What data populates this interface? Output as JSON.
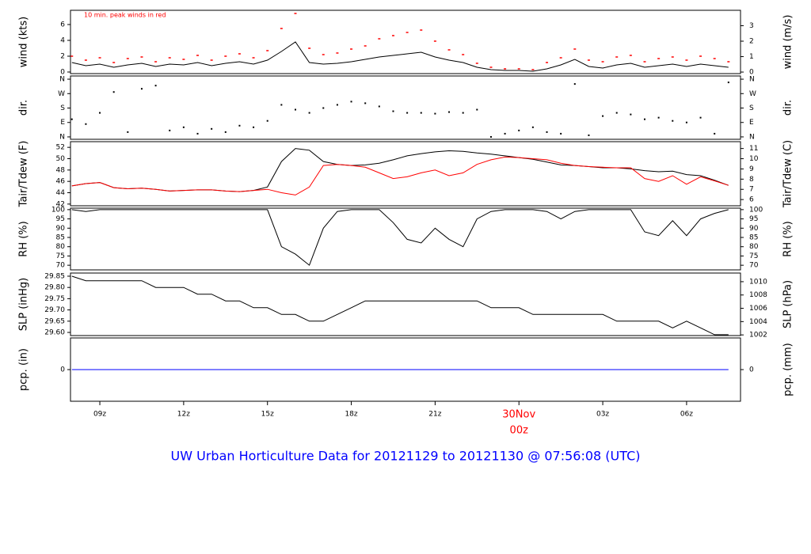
{
  "title": "UW Urban Horticulture Data for 20121129  to  20121130 @ 07:56:08  (UTC)",
  "chart_data": [
    {
      "type": "line",
      "ylabel": "wind (kts)",
      "y2label": "wind (m/s)",
      "annotation": "10 min. peak winds in red",
      "xlim": [
        7.95,
        31.93
      ],
      "ylim": [
        -0.2,
        7.8
      ],
      "yticks": [
        0,
        2,
        4,
        6
      ],
      "y2lim": [
        -0.1,
        4.0
      ],
      "y2ticks": [
        0,
        1,
        2,
        3
      ],
      "x": [
        8,
        8.5,
        9,
        9.5,
        10,
        10.5,
        11,
        11.5,
        12,
        12.5,
        13,
        13.5,
        14,
        14.5,
        15,
        15.5,
        16,
        16.5,
        17,
        17.5,
        18,
        18.5,
        19,
        19.5,
        20,
        20.5,
        21,
        21.5,
        22,
        22.5,
        23,
        23.5,
        24,
        24.5,
        25,
        25.5,
        26,
        26.5,
        27,
        27.5,
        28,
        28.5,
        29,
        29.5,
        30,
        30.5,
        31,
        31.5
      ],
      "series": [
        {
          "style": "line",
          "color": "#000000",
          "values": [
            1.2,
            0.8,
            1.0,
            0.6,
            0.9,
            1.1,
            0.7,
            1.0,
            0.9,
            1.2,
            0.8,
            1.1,
            1.3,
            1.0,
            1.5,
            2.6,
            3.8,
            1.2,
            1.0,
            1.1,
            1.3,
            1.6,
            1.9,
            2.1,
            2.3,
            2.5,
            1.9,
            1.5,
            1.2,
            0.6,
            0.3,
            0.2,
            0.2,
            0.1,
            0.4,
            0.9,
            1.6,
            0.7,
            0.5,
            0.9,
            1.1,
            0.6,
            0.8,
            1.0,
            0.7,
            1.0,
            0.8,
            0.6
          ]
        },
        {
          "style": "points",
          "color": "#ff0000",
          "values": [
            2.0,
            1.5,
            1.8,
            1.2,
            1.7,
            1.9,
            1.3,
            1.8,
            1.6,
            2.1,
            1.5,
            2.0,
            2.3,
            1.8,
            2.7,
            5.5,
            7.4,
            3.0,
            2.2,
            2.4,
            2.9,
            3.3,
            4.2,
            4.6,
            5.0,
            5.3,
            3.9,
            2.8,
            2.2,
            1.1,
            0.6,
            0.4,
            0.4,
            0.3,
            1.2,
            1.8,
            2.9,
            1.5,
            1.3,
            1.9,
            2.1,
            1.3,
            1.7,
            1.9,
            1.5,
            2.0,
            1.7,
            1.3
          ]
        }
      ]
    },
    {
      "type": "scatter",
      "ylabel": "dir.",
      "y2label": "dir.",
      "xlim": [
        7.95,
        31.93
      ],
      "ylim": [
        -15,
        380
      ],
      "yticks": [
        {
          "value": 0,
          "label": "N"
        },
        {
          "value": 90,
          "label": "E"
        },
        {
          "value": 180,
          "label": "S"
        },
        {
          "value": 270,
          "label": "W"
        },
        {
          "value": 360,
          "label": "N"
        }
      ],
      "y2lim": [
        -15,
        380
      ],
      "y2ticks": [
        {
          "value": 0,
          "label": "N"
        },
        {
          "value": 90,
          "label": "E"
        },
        {
          "value": 180,
          "label": "S"
        },
        {
          "value": 270,
          "label": "W"
        },
        {
          "value": 360,
          "label": "N"
        }
      ],
      "x": [
        8,
        8.5,
        9,
        9.5,
        10,
        10.5,
        11,
        11.5,
        12,
        12.5,
        13,
        13.5,
        14,
        14.5,
        15,
        15.5,
        16,
        16.5,
        17,
        17.5,
        18,
        18.5,
        19,
        19.5,
        20,
        20.5,
        21,
        21.5,
        22,
        22.5,
        23,
        23.5,
        24,
        24.5,
        25,
        25.5,
        26,
        26.5,
        27,
        27.5,
        28,
        28.5,
        29,
        29.5,
        30,
        30.5,
        31,
        31.5
      ],
      "series": [
        {
          "style": "dots",
          "color": "#000000",
          "values": [
            110,
            80,
            150,
            280,
            30,
            300,
            320,
            40,
            60,
            20,
            50,
            30,
            70,
            60,
            100,
            200,
            170,
            150,
            180,
            200,
            220,
            210,
            190,
            160,
            150,
            150,
            145,
            155,
            150,
            170,
            0,
            20,
            40,
            60,
            30,
            20,
            330,
            10,
            130,
            150,
            140,
            110,
            120,
            100,
            90,
            120,
            20,
            340
          ]
        }
      ]
    },
    {
      "type": "line",
      "ylabel": "Tair/Tdew (F)",
      "y2label": "Tair/Tdew (C)",
      "xlim": [
        7.95,
        31.93
      ],
      "ylim": [
        41.7,
        53.0
      ],
      "yticks": [
        42,
        44,
        46,
        48,
        50,
        52
      ],
      "y2lim": [
        5.39,
        11.67
      ],
      "y2ticks": [
        6,
        7,
        8,
        9,
        10,
        11
      ],
      "x": [
        8,
        8.5,
        9,
        9.5,
        10,
        10.5,
        11,
        11.5,
        12,
        12.5,
        13,
        13.5,
        14,
        14.5,
        15,
        15.5,
        16,
        16.5,
        17,
        17.5,
        18,
        18.5,
        19,
        19.5,
        20,
        20.5,
        21,
        21.5,
        22,
        22.5,
        23,
        23.5,
        24,
        24.5,
        25,
        25.5,
        26,
        26.5,
        27,
        27.5,
        28,
        28.5,
        29,
        29.5,
        30,
        30.5,
        31,
        31.5
      ],
      "series": [
        {
          "style": "line",
          "color": "#000000",
          "values": [
            45.2,
            45.6,
            45.8,
            44.9,
            44.7,
            44.8,
            44.6,
            44.3,
            44.4,
            44.5,
            44.5,
            44.3,
            44.2,
            44.4,
            45.0,
            49.5,
            51.8,
            51.5,
            49.5,
            49.0,
            48.8,
            48.9,
            49.2,
            49.8,
            50.5,
            50.9,
            51.2,
            51.4,
            51.3,
            51.0,
            50.8,
            50.5,
            50.2,
            49.9,
            49.4,
            48.9,
            48.8,
            48.6,
            48.4,
            48.4,
            48.2,
            47.9,
            47.7,
            47.8,
            47.2,
            47.0,
            46.2,
            45.3
          ]
        },
        {
          "style": "line",
          "color": "#ff0000",
          "values": [
            45.2,
            45.6,
            45.8,
            44.9,
            44.7,
            44.8,
            44.6,
            44.3,
            44.4,
            44.5,
            44.5,
            44.3,
            44.2,
            44.4,
            44.6,
            44.0,
            43.6,
            45.0,
            48.8,
            49.0,
            48.8,
            48.5,
            47.5,
            46.5,
            46.8,
            47.5,
            48.0,
            47.0,
            47.5,
            49.0,
            49.8,
            50.3,
            50.2,
            50.0,
            49.8,
            49.2,
            48.8,
            48.6,
            48.5,
            48.4,
            48.4,
            46.5,
            46.0,
            47.0,
            45.5,
            46.8,
            46.1,
            45.3
          ]
        }
      ]
    },
    {
      "type": "line",
      "ylabel": "RH (%)",
      "y2label": "RH (%)",
      "xlim": [
        7.95,
        31.93
      ],
      "ylim": [
        67.5,
        100.8
      ],
      "yticks": [
        70,
        75,
        80,
        85,
        90,
        95,
        100
      ],
      "y2lim": [
        67.5,
        100.8
      ],
      "y2ticks": [
        70,
        75,
        80,
        85,
        90,
        95,
        100
      ],
      "x": [
        8,
        8.5,
        9,
        9.5,
        10,
        10.5,
        11,
        11.5,
        12,
        12.5,
        13,
        13.5,
        14,
        14.5,
        15,
        15.5,
        16,
        16.5,
        17,
        17.5,
        18,
        18.5,
        19,
        19.5,
        20,
        20.5,
        21,
        21.5,
        22,
        22.5,
        23,
        23.5,
        24,
        24.5,
        25,
        25.5,
        26,
        26.5,
        27,
        27.5,
        28,
        28.5,
        29,
        29.5,
        30,
        30.5,
        31,
        31.5
      ],
      "series": [
        {
          "style": "line",
          "color": "#000000",
          "values": [
            100,
            99,
            100,
            100,
            100,
            100,
            100,
            100,
            100,
            100,
            100,
            100,
            100,
            100,
            100,
            80,
            76,
            70,
            90,
            99,
            100,
            100,
            100,
            93,
            84,
            82,
            90,
            84,
            80,
            95,
            99,
            100,
            100,
            100,
            99,
            95,
            99,
            100,
            100,
            100,
            100,
            88,
            86,
            94,
            86,
            95,
            98,
            100
          ]
        }
      ]
    },
    {
      "type": "line",
      "ylabel": "SLP (inHg)",
      "y2label": "SLP (hPa)",
      "xlim": [
        7.95,
        31.93
      ],
      "ylim": [
        29.586,
        29.864
      ],
      "yticks": [
        {
          "value": 29.6,
          "label": "29.60"
        },
        {
          "value": 29.65,
          "label": "29.65"
        },
        {
          "value": 29.7,
          "label": "29.70"
        },
        {
          "value": 29.75,
          "label": "29.75"
        },
        {
          "value": 29.8,
          "label": "29.80"
        },
        {
          "value": 29.85,
          "label": "29.85"
        }
      ],
      "y2lim": [
        1001.9,
        1011.3
      ],
      "y2ticks": [
        1002,
        1004,
        1006,
        1008,
        1010
      ],
      "x": [
        8,
        8.5,
        9,
        9.5,
        10,
        10.5,
        11,
        11.5,
        12,
        12.5,
        13,
        13.5,
        14,
        14.5,
        15,
        15.5,
        16,
        16.5,
        17,
        17.5,
        18,
        18.5,
        19,
        19.5,
        20,
        20.5,
        21,
        21.5,
        22,
        22.5,
        23,
        23.5,
        24,
        24.5,
        25,
        25.5,
        26,
        26.5,
        27,
        27.5,
        28,
        28.5,
        29,
        29.5,
        30,
        30.5,
        31,
        31.5
      ],
      "series": [
        {
          "style": "line",
          "color": "#000000",
          "values": [
            29.85,
            29.83,
            29.83,
            29.83,
            29.83,
            29.83,
            29.8,
            29.8,
            29.8,
            29.77,
            29.77,
            29.74,
            29.74,
            29.71,
            29.71,
            29.68,
            29.68,
            29.65,
            29.65,
            29.68,
            29.71,
            29.74,
            29.74,
            29.74,
            29.74,
            29.74,
            29.74,
            29.74,
            29.74,
            29.74,
            29.71,
            29.71,
            29.71,
            29.68,
            29.68,
            29.68,
            29.68,
            29.68,
            29.68,
            29.65,
            29.65,
            29.65,
            29.65,
            29.62,
            29.65,
            29.62,
            29.59,
            29.59
          ]
        }
      ]
    },
    {
      "type": "line",
      "ylabel": "pcp. (in)",
      "y2label": "pcp. (mm)",
      "xlim": [
        7.95,
        31.93
      ],
      "ylim": [
        -0.1,
        0.1
      ],
      "yticks": [
        0
      ],
      "y2lim": [
        -2.54,
        2.54
      ],
      "y2ticks": [
        0
      ],
      "xticks": [
        {
          "value": 9,
          "label": "09z"
        },
        {
          "value": 12,
          "label": "12z"
        },
        {
          "value": 15,
          "label": "15z"
        },
        {
          "value": 18,
          "label": "18z"
        },
        {
          "value": 21,
          "label": "21z"
        },
        {
          "value": 24,
          "label": "00z",
          "date": "30Nov",
          "color": "#ff0000"
        },
        {
          "value": 27,
          "label": "03z"
        },
        {
          "value": 30,
          "label": "06z"
        }
      ],
      "x": [
        8,
        8.5,
        9,
        9.5,
        10,
        10.5,
        11,
        11.5,
        12,
        12.5,
        13,
        13.5,
        14,
        14.5,
        15,
        15.5,
        16,
        16.5,
        17,
        17.5,
        18,
        18.5,
        19,
        19.5,
        20,
        20.5,
        21,
        21.5,
        22,
        22.5,
        23,
        23.5,
        24,
        24.5,
        25,
        25.5,
        26,
        26.5,
        27,
        27.5,
        28,
        28.5,
        29,
        29.5,
        30,
        30.5,
        31,
        31.5
      ],
      "series": [
        {
          "style": "line",
          "color": "#0000ff",
          "values": [
            0,
            0,
            0,
            0,
            0,
            0,
            0,
            0,
            0,
            0,
            0,
            0,
            0,
            0,
            0,
            0,
            0,
            0,
            0,
            0,
            0,
            0,
            0,
            0,
            0,
            0,
            0,
            0,
            0,
            0,
            0,
            0,
            0,
            0,
            0,
            0,
            0,
            0,
            0,
            0,
            0,
            0,
            0,
            0,
            0,
            0,
            0,
            0
          ]
        }
      ]
    }
  ]
}
